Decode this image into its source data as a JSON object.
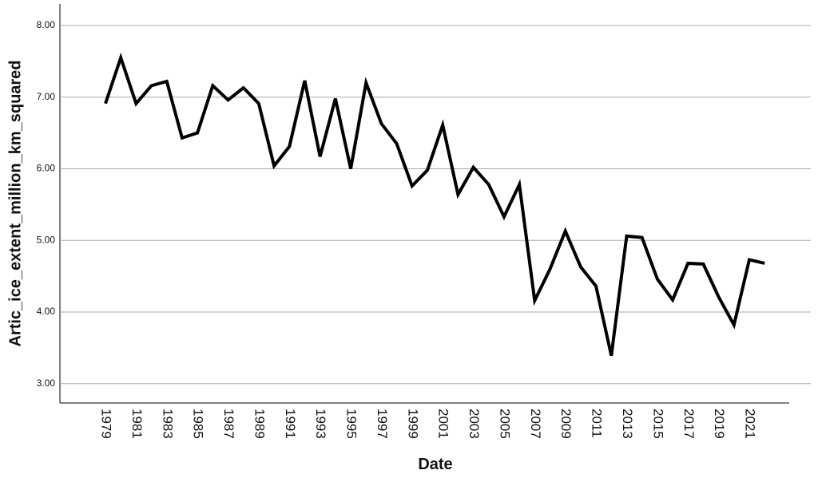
{
  "chart_data": {
    "type": "line",
    "x_label": "Date",
    "y_label": "Artic_ice_extent_million_km_squared",
    "categories": [
      "1979",
      null,
      "1981",
      null,
      "1983",
      null,
      "1985",
      null,
      "1987",
      null,
      "1989",
      null,
      "1991",
      null,
      "1993",
      null,
      "1995",
      null,
      "1997",
      null,
      "1999",
      null,
      "2001",
      null,
      "2003",
      null,
      "2005",
      null,
      "2007",
      null,
      "2009",
      null,
      "2011",
      null,
      "2013",
      null,
      "2015",
      null,
      "2017",
      null,
      "2019",
      null,
      "2021",
      null
    ],
    "values": [
      6.91,
      7.55,
      6.91,
      7.16,
      7.22,
      6.43,
      6.5,
      7.16,
      6.96,
      7.13,
      6.91,
      6.04,
      6.31,
      7.23,
      6.17,
      6.98,
      6.0,
      7.2,
      6.63,
      6.35,
      5.76,
      5.98,
      6.61,
      5.64,
      6.02,
      5.78,
      5.33,
      5.78,
      4.16,
      4.6,
      5.13,
      4.63,
      4.36,
      3.39,
      5.06,
      5.04,
      4.46,
      4.17,
      4.68,
      4.67,
      4.21,
      3.82,
      4.73,
      4.68
    ],
    "color": "#000000",
    "ylim": [
      2.73,
      8.3
    ],
    "yticks": [
      {
        "value": 3,
        "label": "3.00"
      },
      {
        "value": 4,
        "label": "4.00"
      },
      {
        "value": 5,
        "label": "5.00"
      },
      {
        "value": 6,
        "label": "6.00"
      },
      {
        "value": 7,
        "label": "7.00"
      },
      {
        "value": 8,
        "label": "8.00"
      }
    ],
    "grid": true
  }
}
